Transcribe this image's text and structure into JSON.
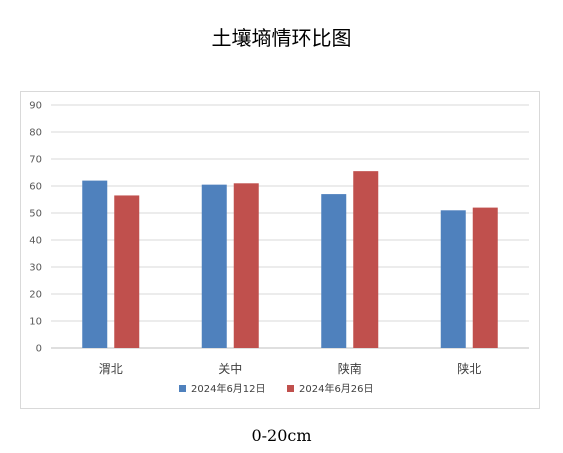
{
  "title": "土壤墒情环比图",
  "caption": "0-20cm",
  "chart_data": {
    "type": "bar",
    "categories": [
      "渭北",
      "关中",
      "陕南",
      "陕北"
    ],
    "series": [
      {
        "name": "2024年6月12日",
        "color": "#4F81BD",
        "values": [
          62,
          60.5,
          57,
          51
        ]
      },
      {
        "name": "2024年6月26日",
        "color": "#C0504D",
        "values": [
          56.5,
          61,
          65.5,
          52
        ]
      }
    ],
    "ylim": [
      0,
      90
    ],
    "yticks": [
      0,
      10,
      20,
      30,
      40,
      50,
      60,
      70,
      80,
      90
    ],
    "grid": true,
    "legend": "bottom"
  }
}
